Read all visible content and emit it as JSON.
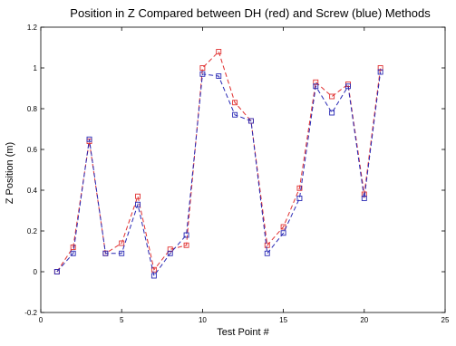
{
  "chart_data": {
    "type": "line",
    "title": "Position in Z Compared between DH (red) and Screw (blue) Methods",
    "xlabel": "Test Point #",
    "ylabel": "Z Position (m)",
    "xlim": [
      0,
      25
    ],
    "ylim": [
      -0.2,
      1.2
    ],
    "xticks": [
      "0",
      "5",
      "10",
      "15",
      "20",
      "25"
    ],
    "yticks": [
      "-0.2",
      "0",
      "0.2",
      "0.4",
      "0.6",
      "0.8",
      "1",
      "1.2"
    ],
    "grid": false,
    "legend": "none",
    "x": [
      1,
      2,
      3,
      4,
      5,
      6,
      7,
      8,
      9,
      10,
      11,
      12,
      13,
      14,
      15,
      16,
      17,
      18,
      19,
      20,
      21
    ],
    "series": [
      {
        "name": "DH",
        "color": "#e03030",
        "line_style": "dashed",
        "marker": "square",
        "values": [
          0.0,
          0.12,
          0.64,
          0.09,
          0.14,
          0.37,
          0.01,
          0.11,
          0.13,
          1.0,
          1.08,
          0.83,
          0.74,
          0.13,
          0.22,
          0.41,
          0.93,
          0.86,
          0.92,
          0.38,
          1.0
        ]
      },
      {
        "name": "Screw",
        "color": "#2828b4",
        "line_style": "dashed",
        "marker": "square",
        "values": [
          0.0,
          0.09,
          0.65,
          0.09,
          0.09,
          0.33,
          -0.02,
          0.09,
          0.18,
          0.97,
          0.96,
          0.77,
          0.74,
          0.09,
          0.19,
          0.36,
          0.91,
          0.78,
          0.91,
          0.36,
          0.98
        ]
      }
    ]
  }
}
